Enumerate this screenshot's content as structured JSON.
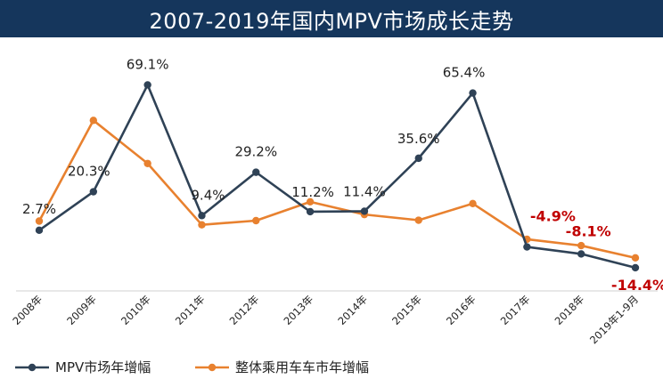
{
  "chart_data": {
    "type": "line",
    "title": "2007-2019年国内MPV市场成长走势",
    "categories": [
      "2008年",
      "2009年",
      "2010年",
      "2011年",
      "2012年",
      "2013年",
      "2014年",
      "2015年",
      "2016年",
      "2017年",
      "2018年",
      "2019年1-9月"
    ],
    "series": [
      {
        "name": "MPV市场年增幅",
        "color": "#2f4256",
        "values": [
          2.7,
          20.3,
          69.1,
          9.4,
          29.2,
          11.2,
          11.4,
          35.6,
          65.4,
          -4.9,
          -8.1,
          -14.4
        ],
        "labels": [
          "2.7%",
          "20.3%",
          "69.1%",
          "9.4%",
          "29.2%",
          "11.2%",
          "11.4%",
          "35.6%",
          "65.4%",
          "-4.9%",
          "-8.1%",
          "-14.4%"
        ]
      },
      {
        "name": "整体乘用车车市年增幅",
        "color": "#e8812f",
        "values": [
          6.9,
          52.9,
          33.2,
          5.2,
          7.1,
          15.7,
          9.9,
          7.3,
          14.9,
          -1.4,
          -4.3,
          -9.9
        ]
      }
    ],
    "ylim": [
      -25,
      90
    ],
    "grid": false,
    "legend_position": "bottom"
  }
}
